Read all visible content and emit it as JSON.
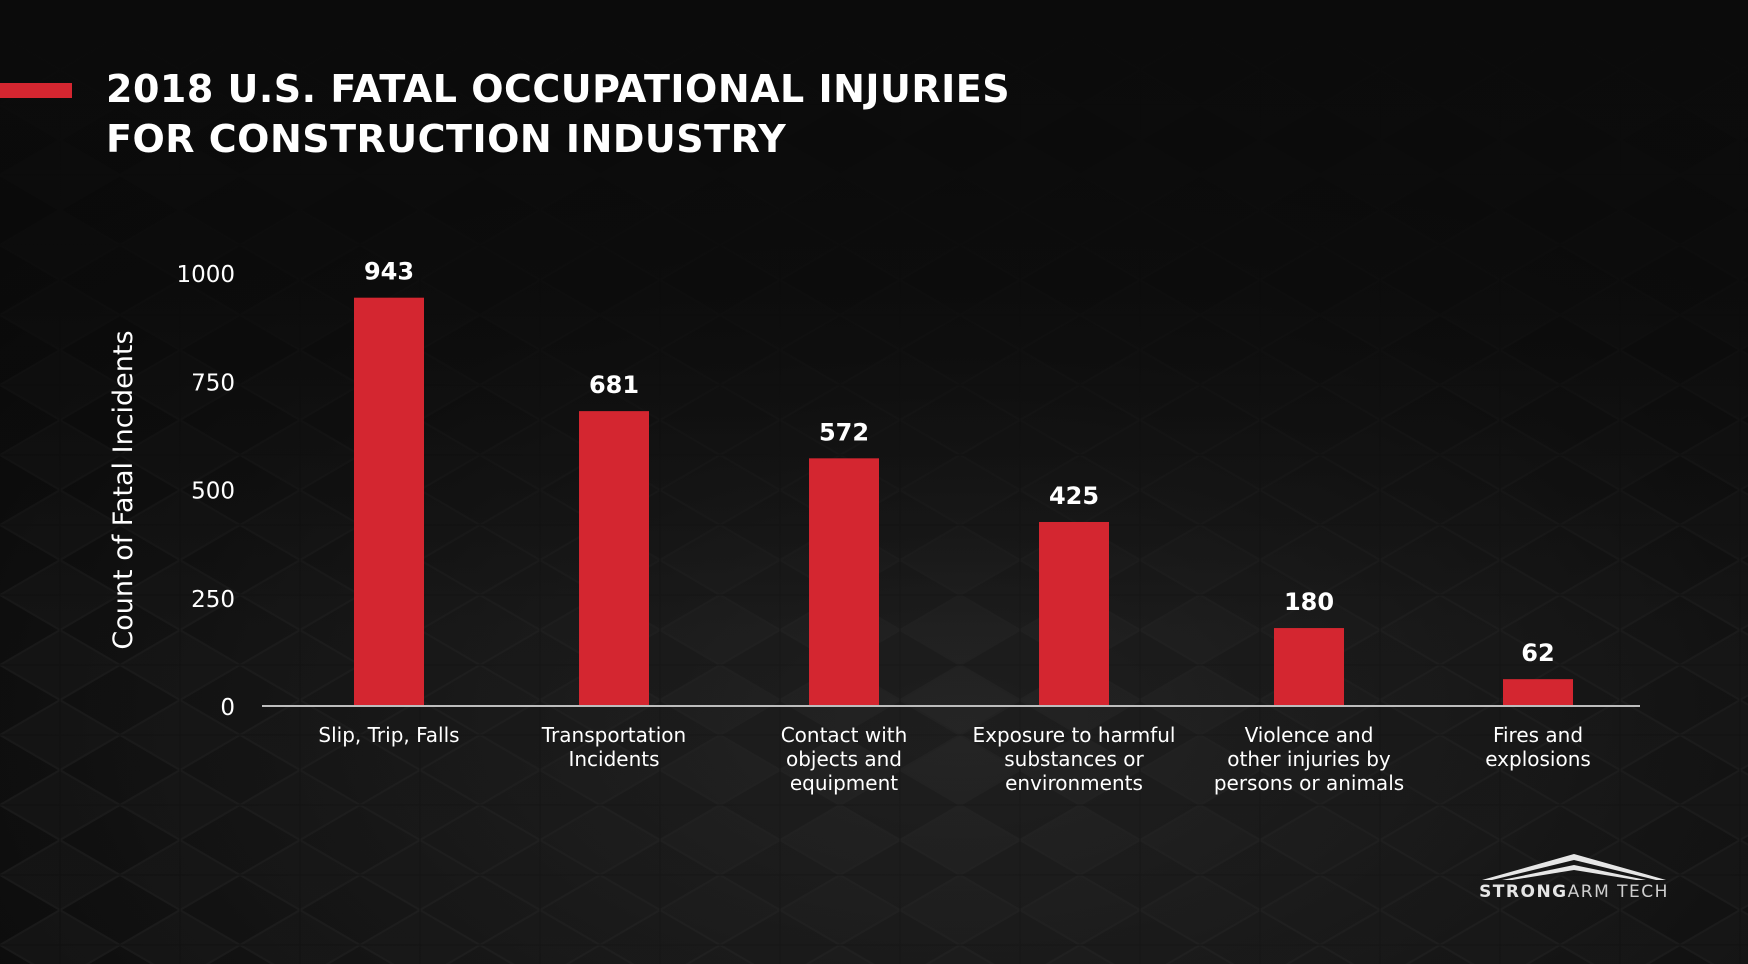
{
  "colors": {
    "accent": "#d42630",
    "bar": "#d42630",
    "background": "#0b0b0b",
    "text": "#ffffff"
  },
  "header": {
    "title_line1": "2018 U.S. FATAL OCCUPATIONAL INJURIES",
    "title_line2": "FOR CONSTRUCTION INDUSTRY"
  },
  "logo": {
    "icon": "roof-chevron-icon",
    "text_bold": "STRONG",
    "text_light": "ARM TECH"
  },
  "chart_data": {
    "type": "bar",
    "title": "",
    "xlabel": "",
    "ylabel": "Count of Fatal Incidents",
    "ylim": [
      0,
      1000
    ],
    "yticks": [
      0,
      250,
      500,
      750,
      1000
    ],
    "grid": false,
    "legend": "none",
    "categories": [
      [
        "Slip, Trip, Falls"
      ],
      [
        "Transportation",
        "Incidents"
      ],
      [
        "Contact with",
        "objects and",
        "equipment"
      ],
      [
        "Exposure to harmful",
        "substances or",
        "environments"
      ],
      [
        "Violence and",
        "other injuries by",
        "persons or animals"
      ],
      [
        "Fires and",
        "explosions"
      ]
    ],
    "values": [
      943,
      681,
      572,
      425,
      180,
      62
    ]
  }
}
